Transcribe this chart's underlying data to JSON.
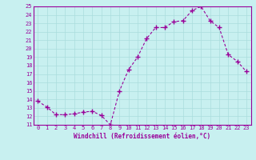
{
  "x": [
    0,
    1,
    2,
    3,
    4,
    5,
    6,
    7,
    8,
    9,
    10,
    11,
    12,
    13,
    14,
    15,
    16,
    17,
    18,
    19,
    20,
    21,
    22,
    23
  ],
  "y": [
    13.8,
    13.1,
    12.2,
    12.2,
    12.3,
    12.5,
    12.6,
    12.1,
    11.0,
    15.0,
    17.5,
    19.0,
    21.2,
    22.5,
    22.5,
    23.2,
    23.3,
    24.5,
    25.0,
    23.3,
    22.5,
    19.3,
    18.5,
    17.3
  ],
  "line_color": "#990099",
  "marker": "+",
  "marker_size": 4,
  "bg_color": "#c8f0f0",
  "grid_color": "#aadddd",
  "xlabel": "Windchill (Refroidissement éolien,°C)",
  "xlabel_color": "#990099",
  "tick_color": "#990099",
  "ylim": [
    11,
    25
  ],
  "xlim": [
    -0.5,
    23.5
  ],
  "yticks": [
    11,
    12,
    13,
    14,
    15,
    16,
    17,
    18,
    19,
    20,
    21,
    22,
    23,
    24,
    25
  ],
  "xticks": [
    0,
    1,
    2,
    3,
    4,
    5,
    6,
    7,
    8,
    9,
    10,
    11,
    12,
    13,
    14,
    15,
    16,
    17,
    18,
    19,
    20,
    21,
    22,
    23
  ],
  "spine_color": "#990099",
  "linewidth": 0.8,
  "font_size_ticks": 5.0,
  "font_size_xlabel": 5.5
}
